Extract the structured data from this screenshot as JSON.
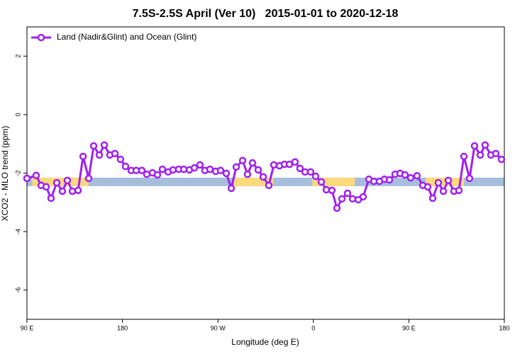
{
  "chart_data": {
    "type": "line",
    "title": "7.5S-2.5S April (Ver 10)   2015-01-01 to 2020-12-18",
    "x_label": "Longitude (deg E)",
    "y_label": "XCO2 - MLO trend (ppm)",
    "xlim": [
      90,
      540
    ],
    "ylim": [
      -7,
      3
    ],
    "xticks": [
      {
        "value": 90,
        "label": "90 E"
      },
      180,
      {
        "value": 270,
        "label": "90 W"
      },
      {
        "value": 360,
        "label": "0"
      },
      {
        "value": 450,
        "label": "90 E"
      },
      {
        "value": 540,
        "label": "180"
      }
    ],
    "yticks": [
      -6,
      -4,
      -2,
      0,
      2
    ],
    "legend": "top-left",
    "surface_band": {
      "y": -2.3,
      "ocean_color": "#a6bedc",
      "land_color": "#fcd97c",
      "land": [
        [
          95,
          148
        ],
        [
          285,
          322
        ],
        [
          359,
          399
        ],
        [
          466,
          502
        ]
      ]
    },
    "x": [
      90,
      98.7,
      103.4,
      108.1,
      112.7,
      118.1,
      123.4,
      128.1,
      132.8,
      138.2,
      142.9,
      148.2,
      152.9,
      158.2,
      162.9,
      168.2,
      172.9,
      178.2,
      182.9,
      188.3,
      193.0,
      198.3,
      203.0,
      208.3,
      213.0,
      217.7,
      223.1,
      227.7,
      233.1,
      237.8,
      243.1,
      247.8,
      253.1,
      257.8,
      262.5,
      267.9,
      272.5,
      277.9,
      282.6,
      287.3,
      293.3,
      297.9,
      302.6,
      308.0,
      312.7,
      318.0,
      322.7,
      328.0,
      332.7,
      337.4,
      342.7,
      347.4,
      352.1,
      357.4,
      362.1,
      367.5,
      372.2,
      377.5,
      382.2,
      386.9,
      392.2,
      396.9,
      402.3,
      406.9,
      412.3,
      417.0,
      422.3,
      427.0,
      431.7,
      437.0,
      441.7,
      446.4,
      451.7,
      457.7,
      463.1,
      467.8,
      472.5,
      477.8,
      482.5,
      487.2,
      492.5,
      497.2,
      501.9,
      507.2,
      511.9,
      517.3,
      521.9,
      527.3,
      532.0,
      537.3
    ],
    "series": [
      {
        "name": "Land (Nadir&Glint) and Ocean (Glint)",
        "color": "#a020f0",
        "values": [
          -2.18,
          -2.08,
          -2.42,
          -2.47,
          -2.86,
          -2.33,
          -2.62,
          -2.25,
          -2.62,
          -2.59,
          -1.43,
          -2.18,
          -1.07,
          -1.38,
          -1.04,
          -1.38,
          -1.33,
          -1.53,
          -1.77,
          -1.91,
          -1.91,
          -1.91,
          -2.04,
          -1.99,
          -2.06,
          -1.87,
          -1.96,
          -1.89,
          -1.87,
          -1.87,
          -1.89,
          -1.82,
          -1.72,
          -1.91,
          -1.87,
          -1.94,
          -1.91,
          -2.01,
          -2.52,
          -1.79,
          -1.57,
          -2.04,
          -1.65,
          -1.89,
          -2.13,
          -2.42,
          -1.72,
          -1.75,
          -1.7,
          -1.7,
          -1.62,
          -1.84,
          -1.96,
          -1.96,
          -2.11,
          -2.3,
          -2.57,
          -2.59,
          -3.2,
          -2.88,
          -2.69,
          -2.88,
          -2.91,
          -2.81,
          -2.21,
          -2.28,
          -2.28,
          -2.21,
          -2.23,
          -2.04,
          -2.01,
          -2.06,
          -2.16,
          -2.09,
          -2.42,
          -2.47,
          -2.86,
          -2.33,
          -2.62,
          -2.25,
          -2.62,
          -2.59,
          -1.43,
          -2.18,
          -1.07,
          -1.38,
          -1.04,
          -1.38,
          -1.33,
          -1.53
        ]
      }
    ]
  }
}
